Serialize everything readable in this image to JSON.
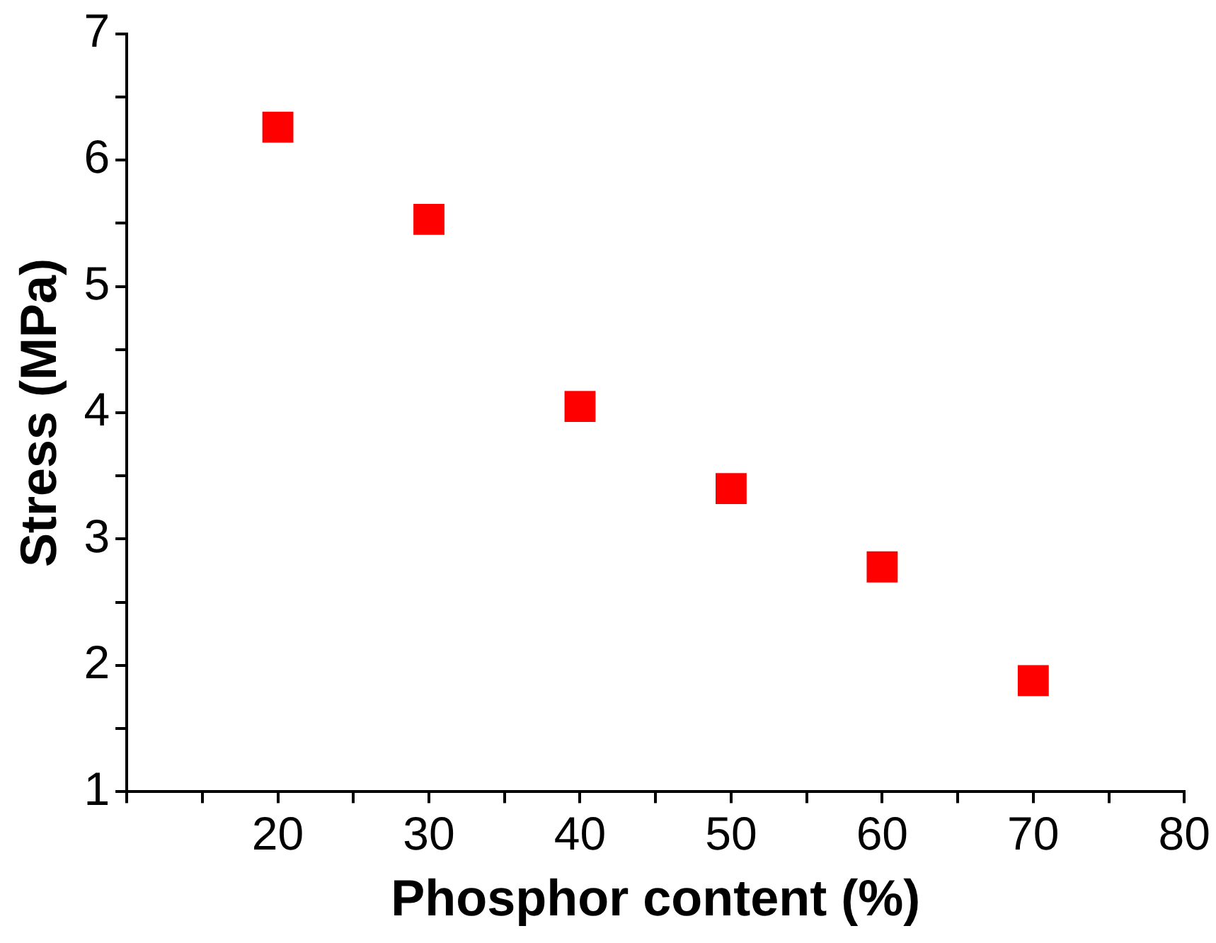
{
  "chart_data": {
    "type": "scatter",
    "xlabel": "Phosphor content (%)",
    "ylabel": "Stress (MPa)",
    "x": [
      20,
      30,
      40,
      50,
      60,
      70
    ],
    "series": [
      {
        "color": "#ff0000",
        "values": [
          6.26,
          5.53,
          4.05,
          3.4,
          2.78,
          1.88
        ]
      }
    ],
    "xlim": [
      10,
      80
    ],
    "ylim": [
      1,
      7
    ],
    "xticks": [
      {
        "value": 10,
        "label": null
      },
      {
        "value": 15,
        "label": null
      },
      20,
      {
        "value": 25,
        "label": null
      },
      30,
      {
        "value": 35,
        "label": null
      },
      40,
      {
        "value": 45,
        "label": null
      },
      50,
      {
        "value": 55,
        "label": null
      },
      60,
      {
        "value": 65,
        "label": null
      },
      70,
      {
        "value": 75,
        "label": null
      },
      80
    ],
    "yticks": [
      1,
      {
        "value": 1.5,
        "label": null
      },
      2,
      {
        "value": 2.5,
        "label": null
      },
      3,
      {
        "value": 3.5,
        "label": null
      },
      4,
      {
        "value": 4.5,
        "label": null
      },
      5,
      {
        "value": 5.5,
        "label": null
      },
      6,
      {
        "value": 6.5,
        "label": null
      },
      7
    ],
    "grid": false,
    "legend": false,
    "marker": "square"
  }
}
